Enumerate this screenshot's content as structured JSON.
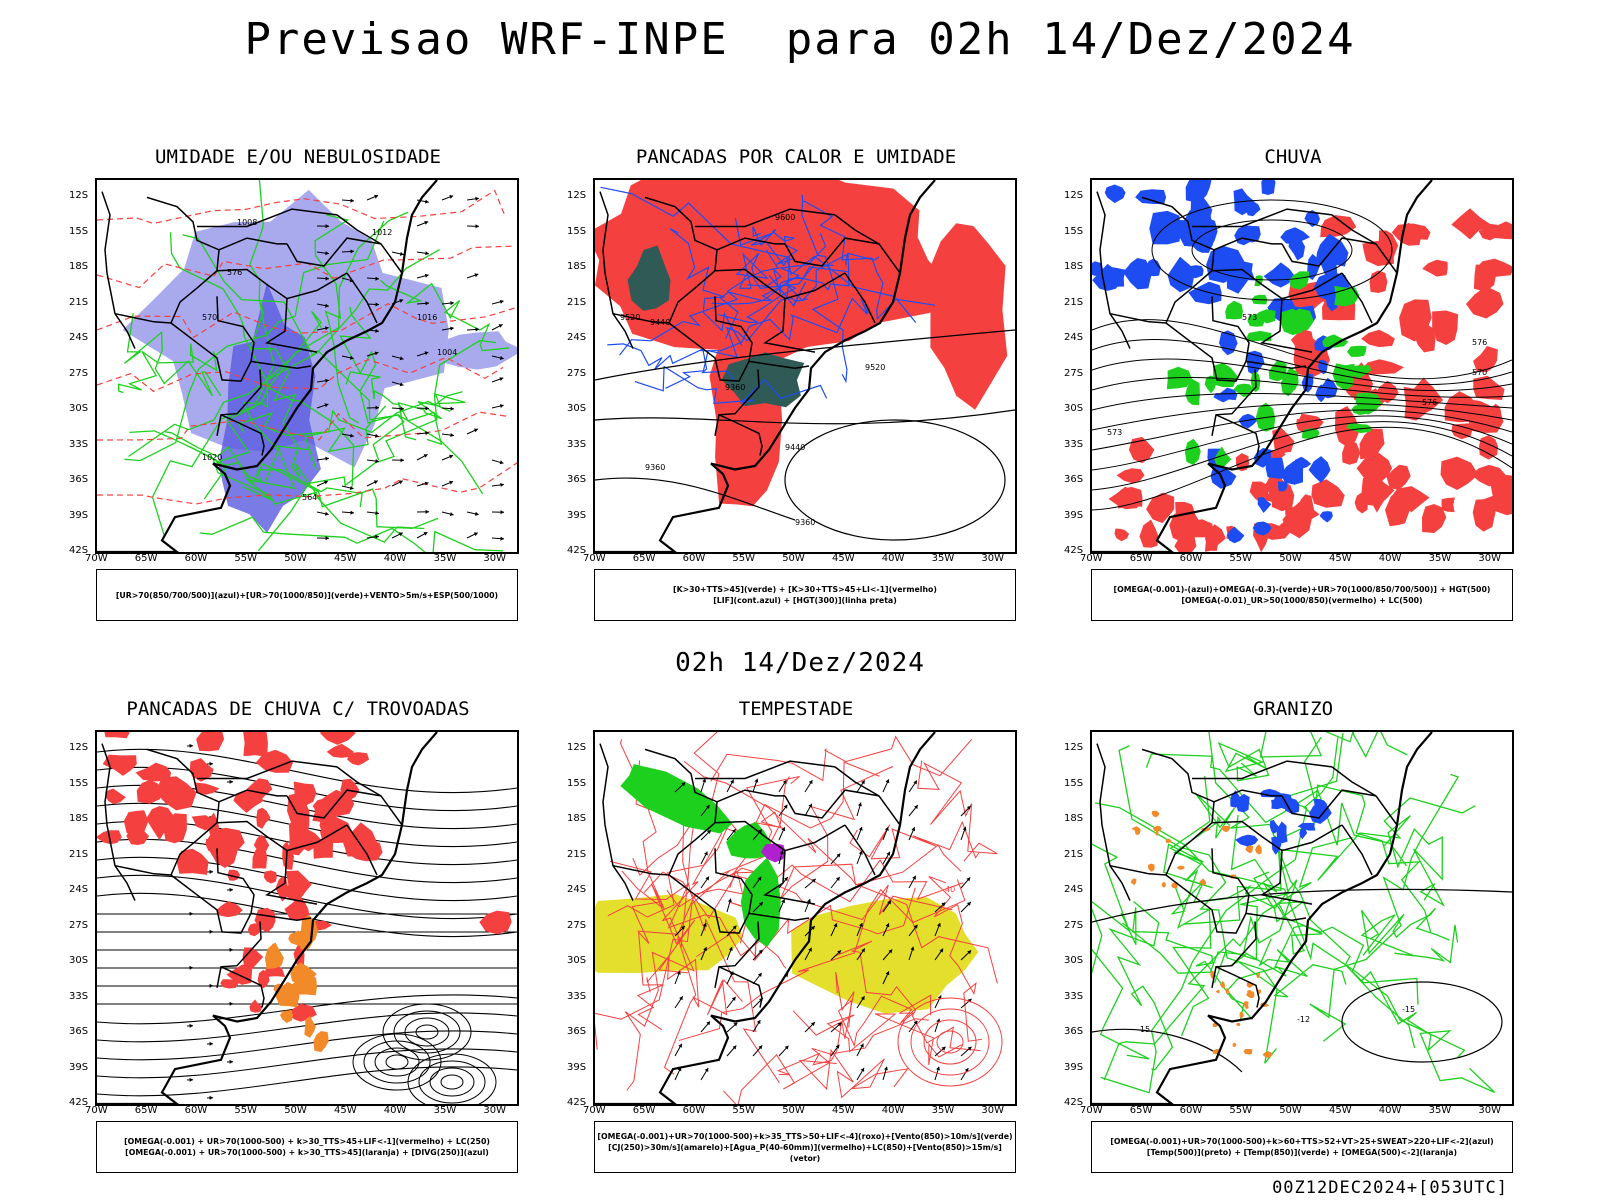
{
  "header": {
    "title": "Previsao WRF-INPE  para 02h 14/Dez/2024",
    "mid_time": "02h 14/Dez/2024"
  },
  "axes": {
    "lat_labels": [
      "12S",
      "15S",
      "18S",
      "21S",
      "24S",
      "27S",
      "30S",
      "33S",
      "36S",
      "39S",
      "42S"
    ],
    "lon_labels": [
      "70W",
      "65W",
      "60W",
      "55W",
      "50W",
      "45W",
      "40W",
      "35W",
      "30W"
    ]
  },
  "panels": [
    {
      "title": "UMIDADE E/OU NEBULOSIDADE",
      "legend": [
        "[UR>70(850/700/500)](azul)+[UR>70(1000/850)](verde)+VENTO>5m/s+ESP(500/1000)"
      ],
      "contour_labels": [
        "1008",
        "1012",
        "1016",
        "1020",
        "1004",
        "570",
        "576",
        "564"
      ]
    },
    {
      "title": "PANCADAS POR CALOR E UMIDADE",
      "legend": [
        "[K>30+TTS>45](verde) + [K>30+TTS>45+LI<-1](vermelho)",
        "[LIF](cont.azul) + [HGT(300)](linha preta)"
      ],
      "contour_labels": [
        "9600",
        "9520",
        "9440",
        "9360",
        "9520",
        "9440",
        "9360",
        "9360"
      ]
    },
    {
      "title": "CHUVA",
      "legend": [
        "[OMEGA(-0.001)-(azul)+OMEGA(-0.3)-(verde)+UR>70(1000/850/700/500)] + HGT(500)",
        "[OMEGA(-0.01)_UR>50(1000/850)(vermelho) + LC(500)"
      ],
      "contour_labels": [
        "576",
        "573",
        "570",
        "576",
        "573"
      ]
    },
    {
      "title": "PANCADAS DE CHUVA C/ TROVOADAS",
      "legend": [
        "[OMEGA(-0.001) + UR>70(1000-500) + k>30_TTS>45+LIF<-1](vermelho) + LC(250)",
        "[OMEGA(-0.001) + UR>70(1000-500) + k>30_TTS>45](laranja) + [DIVG(250)](azul)"
      ],
      "contour_labels": []
    },
    {
      "title": "TEMPESTADE",
      "legend": [
        "[OMEGA(-0.001)+UR>70(1000-500)+k>35_TTS>50+LIF<-4](roxo)+[Vento(850)>10m/s](verde)",
        "[CJ(250)>30m/s](amarelo)+[Agua_P(40-60mm)](vermelho)+LC(850)+[Vento(850)>15m/s](vetor)"
      ],
      "contour_labels": [
        "40"
      ]
    },
    {
      "title": "GRANIZO",
      "legend": [
        "[OMEGA(-0.001)+UR>70(1000-500)+k>60+TTS>52+VT>25+SWEAT>220+LIF<-2](azul)",
        "[Temp(500)](preto) + [Temp(850)](verde) + [OMEGA(500)<-2](laranja)"
      ],
      "contour_labels": [
        "-15",
        "-12",
        "-15"
      ]
    }
  ],
  "footer": "00Z12DEC2024+[053UTC]",
  "colors": {
    "blue_shade": "#a9a9ee",
    "blue_dark": "#5a5adf",
    "green": "#1ed01e",
    "red": "#f54040",
    "teal": "#2f5a55",
    "yellow": "#e3df2c",
    "orange": "#f28a2a",
    "purple": "#b020d0",
    "blue_solid": "#1d4df2"
  }
}
